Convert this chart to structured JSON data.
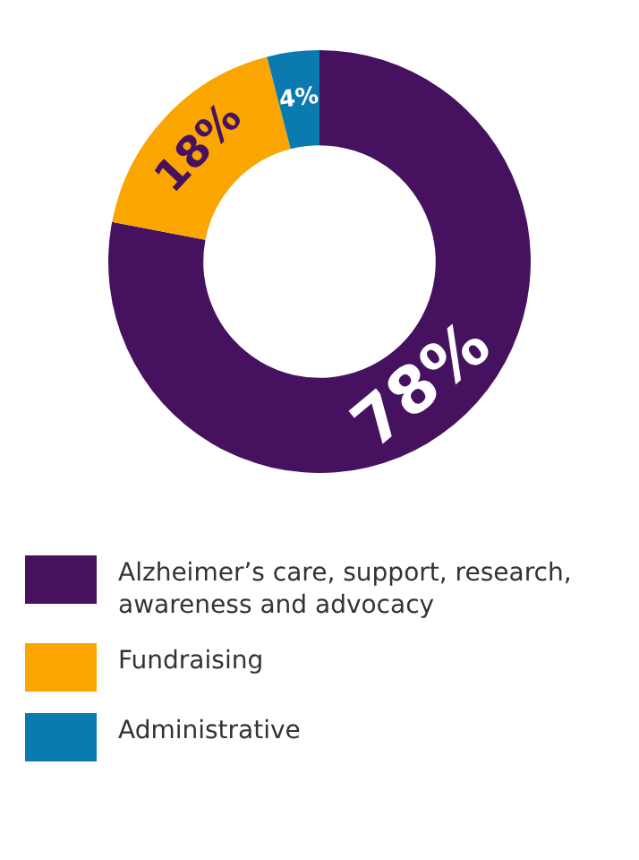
{
  "chart_data": {
    "type": "donut",
    "categories": [
      "Alzheimer’s care, support, research, awareness and advocacy",
      "Fundraising",
      "Administrative"
    ],
    "values": [
      78,
      18,
      4
    ],
    "colors": [
      "#46125f",
      "#fba500",
      "#0a7aaf"
    ],
    "value_labels": [
      "78%",
      "18%",
      "4%"
    ],
    "legend": "bottom"
  }
}
